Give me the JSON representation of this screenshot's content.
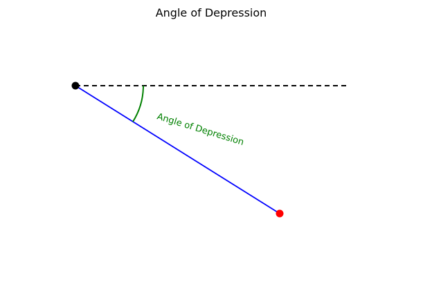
{
  "figure": {
    "title": "Angle of Depression",
    "background": "#ffffff"
  },
  "diagram": {
    "horizontal_line": {
      "style": "dashed",
      "color": "#000000"
    },
    "line_of_sight": {
      "color": "#0000ff"
    },
    "observer_point": {
      "color": "#000000"
    },
    "target_point": {
      "color": "#ff0000"
    },
    "angle_arc": {
      "color": "#008000"
    },
    "angle_label": {
      "text": "Angle of Depression",
      "color": "#008000"
    }
  }
}
